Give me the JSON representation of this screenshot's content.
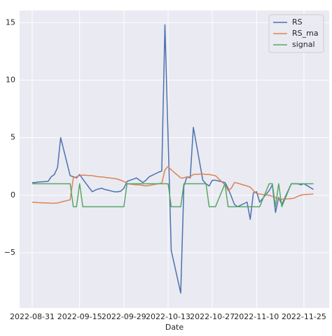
{
  "chart_data": {
    "type": "line",
    "xlabel": "Date",
    "x": [
      "2022-08-31",
      "2022-09-01",
      "2022-09-02",
      "2022-09-05",
      "2022-09-06",
      "2022-09-07",
      "2022-09-08",
      "2022-09-09",
      "2022-09-12",
      "2022-09-13",
      "2022-09-14",
      "2022-09-15",
      "2022-09-16",
      "2022-09-19",
      "2022-09-20",
      "2022-09-21",
      "2022-09-22",
      "2022-09-23",
      "2022-09-26",
      "2022-09-27",
      "2022-09-28",
      "2022-09-29",
      "2022-09-30",
      "2022-10-03",
      "2022-10-04",
      "2022-10-05",
      "2022-10-06",
      "2022-10-07",
      "2022-10-10",
      "2022-10-11",
      "2022-10-12",
      "2022-10-13",
      "2022-10-14",
      "2022-10-17",
      "2022-10-18",
      "2022-10-19",
      "2022-10-20",
      "2022-10-21",
      "2022-10-24",
      "2022-10-25",
      "2022-10-26",
      "2022-10-27",
      "2022-10-28",
      "2022-10-31",
      "2022-11-01",
      "2022-11-02",
      "2022-11-03",
      "2022-11-04",
      "2022-11-07",
      "2022-11-08",
      "2022-11-09",
      "2022-11-10",
      "2022-11-11",
      "2022-11-14",
      "2022-11-15",
      "2022-11-16",
      "2022-11-17",
      "2022-11-18",
      "2022-11-21",
      "2022-11-22",
      "2022-11-23",
      "2022-11-24",
      "2022-11-25",
      "2022-11-28"
    ],
    "series": [
      {
        "name": "RS",
        "color": "#4c72b0",
        "values": [
          1.1,
          1.1,
          1.15,
          1.2,
          1.6,
          1.8,
          2.4,
          5.0,
          1.7,
          1.6,
          1.5,
          1.8,
          1.4,
          0.3,
          0.45,
          0.55,
          0.6,
          0.5,
          0.3,
          0.3,
          0.35,
          0.6,
          1.2,
          1.5,
          1.3,
          1.1,
          1.3,
          1.6,
          2.0,
          2.1,
          14.8,
          5.0,
          -4.8,
          -8.5,
          0.8,
          1.6,
          1.5,
          5.9,
          1.3,
          1.0,
          0.8,
          1.3,
          1.3,
          1.1,
          0.6,
          -0.1,
          -0.8,
          -1.0,
          -0.6,
          -2.1,
          0.2,
          0.3,
          -0.6,
          0.4,
          0.9,
          -1.5,
          -0.2,
          -0.8,
          1.0,
          1.0,
          1.0,
          0.9,
          1.0,
          0.5
        ]
      },
      {
        "name": "RS_ma",
        "color": "#dd8452",
        "values": [
          -0.6,
          -0.62,
          -0.65,
          -0.68,
          -0.7,
          -0.7,
          -0.68,
          -0.6,
          -0.4,
          1.5,
          1.6,
          1.7,
          1.75,
          1.7,
          1.65,
          1.6,
          1.6,
          1.55,
          1.45,
          1.4,
          1.3,
          1.2,
          1.0,
          0.9,
          0.9,
          0.85,
          0.8,
          0.85,
          1.0,
          1.05,
          2.2,
          2.5,
          2.2,
          1.5,
          1.5,
          1.6,
          1.6,
          1.8,
          1.85,
          1.8,
          1.8,
          1.75,
          1.7,
          0.9,
          0.4,
          0.6,
          1.1,
          1.05,
          0.8,
          0.7,
          0.4,
          0.15,
          0.1,
          0.0,
          -0.1,
          -0.2,
          -0.3,
          -0.35,
          -0.3,
          -0.25,
          -0.1,
          0.0,
          0.05,
          0.1
        ]
      },
      {
        "name": "signal",
        "color": "#55a868",
        "values": [
          1,
          1,
          1,
          1,
          1,
          1,
          1,
          1,
          1,
          -1,
          -1,
          1,
          -1,
          -1,
          -1,
          -1,
          -1,
          -1,
          -1,
          -1,
          -1,
          -1,
          1,
          1,
          1,
          1,
          1,
          1,
          1,
          1,
          1,
          1,
          -1,
          -1,
          1,
          1,
          1,
          1,
          1,
          1,
          -1,
          -1,
          -1,
          1,
          -1,
          -1,
          -1,
          -1,
          -1,
          -1,
          -1,
          -1,
          -1,
          1,
          1,
          -1,
          1,
          -1,
          1,
          1,
          1,
          1,
          1,
          1
        ]
      }
    ],
    "xlim": [
      "2022-08-27",
      "2022-12-03"
    ],
    "xticks": [
      "2022-08-31",
      "2022-09-15",
      "2022-09-29",
      "2022-10-13",
      "2022-10-27",
      "2022-11-10",
      "2022-11-25"
    ],
    "ylim": [
      -9.8,
      16.05
    ],
    "yticks": [
      {
        "value": -5,
        "label": "−5"
      },
      0,
      5,
      10,
      15
    ],
    "grid": true,
    "legend": "upper right",
    "background": "#eaeaf2"
  }
}
